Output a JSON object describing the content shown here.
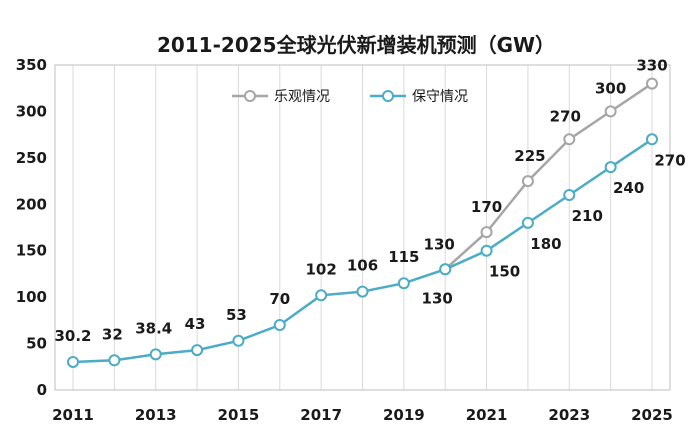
{
  "chart_data": {
    "type": "line",
    "title": "2011-2025全球光伏新增装机预测（GW）",
    "xlabel": "",
    "ylabel": "",
    "x": [
      2011,
      2012,
      2013,
      2014,
      2015,
      2016,
      2017,
      2018,
      2019,
      2020,
      2021,
      2022,
      2023,
      2024,
      2025
    ],
    "x_tick_labels": [
      "2011",
      "2013",
      "2015",
      "2017",
      "2019",
      "2021",
      "2023",
      "2025"
    ],
    "ylim": [
      0,
      350
    ],
    "y_ticks": [
      0,
      50,
      100,
      150,
      200,
      250,
      300,
      350
    ],
    "grid": "vertical",
    "legend": "top",
    "series": [
      {
        "name": "乐观情况",
        "color": "#a6a6a6",
        "x": [
          2020,
          2021,
          2022,
          2023,
          2024,
          2025
        ],
        "values": [
          130,
          170,
          225,
          270,
          300,
          330
        ],
        "labels": [
          "",
          "170",
          "225",
          "270",
          "300",
          "330"
        ]
      },
      {
        "name": "保守情况",
        "color": "#4bacc6",
        "x": [
          2011,
          2012,
          2013,
          2014,
          2015,
          2016,
          2017,
          2018,
          2019,
          2020,
          2021,
          2022,
          2023,
          2024,
          2025
        ],
        "values": [
          30.2,
          32,
          38.4,
          43,
          53,
          70,
          102,
          106,
          115,
          130,
          150,
          180,
          210,
          240,
          270
        ],
        "labels": [
          "30.2",
          "32",
          "38.4",
          "43",
          "53",
          "70",
          "102",
          "106",
          "115",
          "130",
          "150",
          "180",
          "210",
          "240",
          "270"
        ]
      }
    ],
    "extra_labels": [
      {
        "x": 2020,
        "y": 130,
        "text": "130"
      }
    ]
  }
}
